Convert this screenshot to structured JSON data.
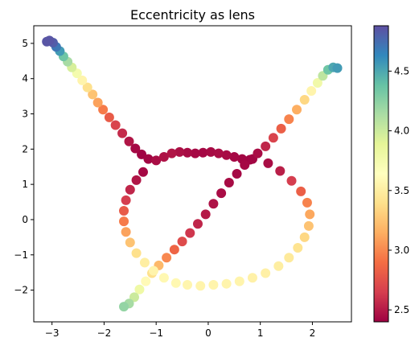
{
  "chart_data": {
    "type": "scatter",
    "title": "Eccentricity as lens",
    "xlabel": "",
    "ylabel": "",
    "xlim": [
      -3.35,
      2.75
    ],
    "ylim": [
      -2.9,
      5.5
    ],
    "x_ticks": [
      -3,
      -2,
      -1,
      0,
      1,
      2
    ],
    "y_ticks": [
      -2,
      -1,
      0,
      1,
      2,
      3,
      4,
      5
    ],
    "tick_labels_x": [
      "−3",
      "−2",
      "−1",
      "0",
      "1",
      "2"
    ],
    "tick_labels_y": [
      "−2",
      "−1",
      "0",
      "1",
      "2",
      "3",
      "4",
      "5"
    ],
    "colormap": "Spectral",
    "colorbar": {
      "min": 2.4,
      "max": 4.88,
      "ticks": [
        2.5,
        3.0,
        3.5,
        4.0,
        4.5
      ],
      "tick_labels": [
        "2.5",
        "3.0",
        "3.5",
        "4.0",
        "4.5"
      ]
    },
    "colormap_stops": [
      "#9e0142",
      "#d53e4f",
      "#f46d43",
      "#fdae61",
      "#fee08b",
      "#ffffbf",
      "#e6f598",
      "#abdda4",
      "#66c2a5",
      "#3288bd",
      "#5e4fa2"
    ],
    "grid": false,
    "legend": "none",
    "series": [
      {
        "points": [
          [
            -3.1,
            5.05,
            4.85
          ],
          [
            -3.05,
            5.08,
            4.85
          ],
          [
            -2.98,
            5.02,
            4.82
          ],
          [
            -2.92,
            4.9,
            4.7
          ],
          [
            -2.85,
            4.78,
            4.55
          ],
          [
            -2.78,
            4.63,
            4.35
          ],
          [
            -2.7,
            4.48,
            4.15
          ],
          [
            -2.62,
            4.32,
            3.95
          ],
          [
            -2.52,
            4.15,
            3.75
          ],
          [
            -2.42,
            3.95,
            3.55
          ],
          [
            -2.32,
            3.75,
            3.4
          ],
          [
            -2.22,
            3.55,
            3.25
          ],
          [
            -2.12,
            3.32,
            3.1
          ],
          [
            -2.02,
            3.12,
            2.95
          ],
          [
            -1.9,
            2.9,
            2.8
          ],
          [
            -1.78,
            2.68,
            2.68
          ],
          [
            -1.65,
            2.45,
            2.57
          ],
          [
            -1.52,
            2.22,
            2.48
          ],
          [
            -1.4,
            2.02,
            2.43
          ],
          [
            -1.28,
            1.85,
            2.41
          ],
          [
            -1.15,
            1.72,
            2.42
          ],
          [
            -1.0,
            1.68,
            2.45
          ],
          [
            -0.85,
            1.78,
            2.47
          ],
          [
            -0.7,
            1.88,
            2.48
          ],
          [
            -0.55,
            1.92,
            2.46
          ],
          [
            -0.4,
            1.9,
            2.44
          ],
          [
            -0.25,
            1.88,
            2.43
          ],
          [
            -0.1,
            1.9,
            2.43
          ],
          [
            0.05,
            1.92,
            2.44
          ],
          [
            0.2,
            1.88,
            2.45
          ],
          [
            0.35,
            1.83,
            2.44
          ],
          [
            0.5,
            1.78,
            2.43
          ],
          [
            0.65,
            1.72,
            2.42
          ],
          [
            0.8,
            1.7,
            2.41
          ],
          [
            0.95,
            1.88,
            2.45
          ],
          [
            1.1,
            2.08,
            2.55
          ],
          [
            1.25,
            2.32,
            2.68
          ],
          [
            1.4,
            2.58,
            2.82
          ],
          [
            1.55,
            2.85,
            2.98
          ],
          [
            1.7,
            3.12,
            3.15
          ],
          [
            1.85,
            3.4,
            3.35
          ],
          [
            1.98,
            3.65,
            3.55
          ],
          [
            2.1,
            3.88,
            3.78
          ],
          [
            2.2,
            4.08,
            4.05
          ],
          [
            2.3,
            4.25,
            4.35
          ],
          [
            2.4,
            4.32,
            4.5
          ],
          [
            2.48,
            4.3,
            4.55
          ],
          [
            0.85,
            1.72,
            2.42
          ],
          [
            0.7,
            1.55,
            2.43
          ],
          [
            0.55,
            1.3,
            2.43
          ],
          [
            0.4,
            1.05,
            2.44
          ],
          [
            0.25,
            0.75,
            2.45
          ],
          [
            0.1,
            0.45,
            2.47
          ],
          [
            -0.05,
            0.15,
            2.5
          ],
          [
            -0.2,
            -0.12,
            2.55
          ],
          [
            -0.35,
            -0.38,
            2.62
          ],
          [
            -0.5,
            -0.62,
            2.72
          ],
          [
            -0.65,
            -0.85,
            2.85
          ],
          [
            -0.8,
            -1.08,
            3.0
          ],
          [
            -0.95,
            -1.3,
            3.2
          ],
          [
            -1.08,
            -1.52,
            3.4
          ],
          [
            -1.2,
            -1.75,
            3.6
          ],
          [
            -1.32,
            -1.98,
            3.8
          ],
          [
            -1.42,
            -2.2,
            4.0
          ],
          [
            -1.52,
            -2.38,
            4.15
          ],
          [
            -1.62,
            -2.47,
            4.22
          ],
          [
            -1.25,
            1.35,
            2.43
          ],
          [
            -1.38,
            1.12,
            2.48
          ],
          [
            -1.5,
            0.85,
            2.55
          ],
          [
            -1.58,
            0.55,
            2.65
          ],
          [
            -1.62,
            0.25,
            2.8
          ],
          [
            -1.62,
            -0.05,
            2.95
          ],
          [
            -1.58,
            -0.35,
            3.1
          ],
          [
            -1.5,
            -0.65,
            3.25
          ],
          [
            -1.38,
            -0.95,
            3.4
          ],
          [
            -1.22,
            -1.22,
            3.5
          ],
          [
            -1.05,
            -1.45,
            3.55
          ],
          [
            -0.85,
            -1.65,
            3.58
          ],
          [
            -0.62,
            -1.8,
            3.58
          ],
          [
            -0.4,
            -1.85,
            3.56
          ],
          [
            -0.15,
            -1.88,
            3.55
          ],
          [
            0.1,
            -1.85,
            3.55
          ],
          [
            0.35,
            -1.82,
            3.55
          ],
          [
            0.6,
            -1.75,
            3.55
          ],
          [
            0.85,
            -1.65,
            3.53
          ],
          [
            1.1,
            -1.52,
            3.52
          ],
          [
            1.35,
            -1.32,
            3.5
          ],
          [
            1.55,
            -1.08,
            3.47
          ],
          [
            1.72,
            -0.8,
            3.42
          ],
          [
            1.85,
            -0.5,
            3.35
          ],
          [
            1.93,
            -0.18,
            3.25
          ],
          [
            1.95,
            0.15,
            3.12
          ],
          [
            1.9,
            0.48,
            2.98
          ],
          [
            1.78,
            0.8,
            2.82
          ],
          [
            1.6,
            1.1,
            2.65
          ],
          [
            1.38,
            1.38,
            2.52
          ],
          [
            1.15,
            1.6,
            2.45
          ]
        ]
      }
    ]
  }
}
